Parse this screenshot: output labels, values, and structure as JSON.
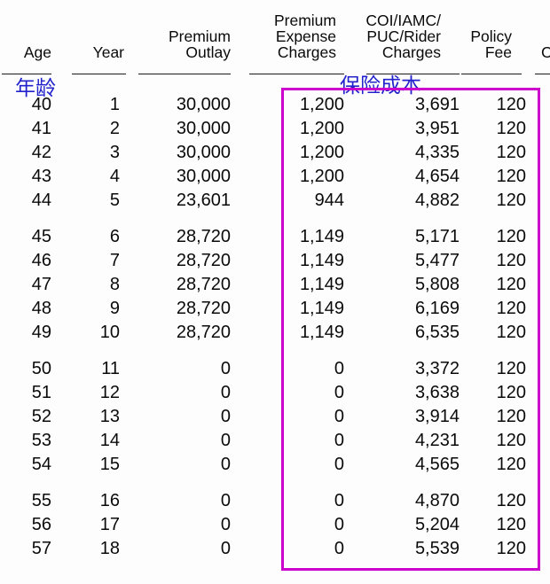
{
  "annotations": {
    "age_label_cn": "年龄",
    "insurance_cost_label_cn": "保险成本",
    "annotation_color": "#2222cc",
    "highlight_box_color": "#cc00cc"
  },
  "table": {
    "columns": [
      {
        "id": "age",
        "header_lines": [
          "Age"
        ]
      },
      {
        "id": "year",
        "header_lines": [
          "Year"
        ]
      },
      {
        "id": "premium-outlay",
        "header_lines": [
          "Premium",
          "Outlay"
        ]
      },
      {
        "id": "premium-expense-charges",
        "header_lines": [
          "Premium",
          "Expense",
          "Charges"
        ]
      },
      {
        "id": "coi-iamc-puc-rider-charges",
        "header_lines": [
          "COI/IAMC/",
          "PUC/Rider",
          "Charges"
        ]
      },
      {
        "id": "policy-fee",
        "header_lines": [
          "Policy",
          "Fee"
        ]
      },
      {
        "id": "truncated-right-column",
        "header_lines": [
          "C"
        ]
      }
    ],
    "groups": [
      {
        "rows": [
          [
            "40",
            "1",
            "30,000",
            "1,200",
            "3,691",
            "120",
            ""
          ],
          [
            "41",
            "2",
            "30,000",
            "1,200",
            "3,951",
            "120",
            ""
          ],
          [
            "42",
            "3",
            "30,000",
            "1,200",
            "4,335",
            "120",
            ""
          ],
          [
            "43",
            "4",
            "30,000",
            "1,200",
            "4,654",
            "120",
            ""
          ],
          [
            "44",
            "5",
            "23,601",
            "944",
            "4,882",
            "120",
            ""
          ]
        ]
      },
      {
        "rows": [
          [
            "45",
            "6",
            "28,720",
            "1,149",
            "5,171",
            "120",
            ""
          ],
          [
            "46",
            "7",
            "28,720",
            "1,149",
            "5,477",
            "120",
            ""
          ],
          [
            "47",
            "8",
            "28,720",
            "1,149",
            "5,808",
            "120",
            ""
          ],
          [
            "48",
            "9",
            "28,720",
            "1,149",
            "6,169",
            "120",
            ""
          ],
          [
            "49",
            "10",
            "28,720",
            "1,149",
            "6,535",
            "120",
            ""
          ]
        ]
      },
      {
        "rows": [
          [
            "50",
            "11",
            "0",
            "0",
            "3,372",
            "120",
            ""
          ],
          [
            "51",
            "12",
            "0",
            "0",
            "3,638",
            "120",
            ""
          ],
          [
            "52",
            "13",
            "0",
            "0",
            "3,914",
            "120",
            ""
          ],
          [
            "53",
            "14",
            "0",
            "0",
            "4,231",
            "120",
            ""
          ],
          [
            "54",
            "15",
            "0",
            "0",
            "4,565",
            "120",
            ""
          ]
        ]
      },
      {
        "rows": [
          [
            "55",
            "16",
            "0",
            "0",
            "4,870",
            "120",
            ""
          ],
          [
            "56",
            "17",
            "0",
            "0",
            "5,204",
            "120",
            ""
          ],
          [
            "57",
            "18",
            "0",
            "0",
            "5,539",
            "120",
            ""
          ]
        ]
      }
    ]
  }
}
